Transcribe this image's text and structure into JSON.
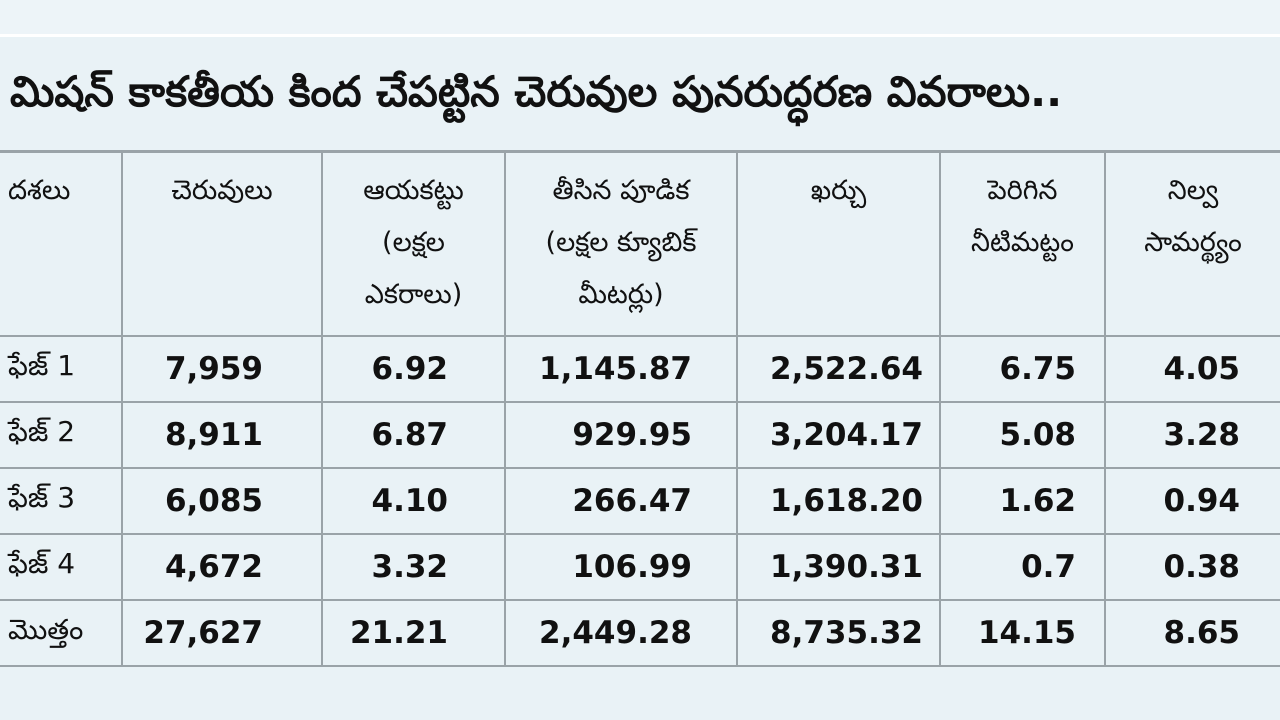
{
  "title": "మిషన్ కాకతీయ కింద చేపట్టిన చెరువుల పునరుద్ధరణ వివరాలు..",
  "table": {
    "headers": [
      "దశలు",
      "చెరువులు",
      "ఆయకట్టు\n(లక్షల\nఎకరాలు)",
      "తీసిన పూడిక\n(లక్షల క్యూబిక్\nమీటర్లు)",
      "ఖర్చు",
      "పెరిగిన\nనీటిమట్టం",
      "నిల్వ\nసామర్థ్యం"
    ],
    "rows": [
      [
        "ఫేజ్ 1",
        "7,959",
        "6.92",
        "1,145.87",
        "2,522.64",
        "6.75",
        "4.05"
      ],
      [
        "ఫేజ్ 2",
        "8,911",
        "6.87",
        "929.95",
        "3,204.17",
        "5.08",
        "3.28"
      ],
      [
        "ఫేజ్ 3",
        "6,085",
        "4.10",
        "266.47",
        "1,618.20",
        "1.62",
        "0.94"
      ],
      [
        "ఫేజ్ 4",
        "4,672",
        "3.32",
        "106.99",
        "1,390.31",
        "0.7",
        "0.38"
      ],
      [
        "మొత్తం",
        "27,627",
        "21.21",
        "2,449.28",
        "8,735.32",
        "14.15",
        "8.65"
      ]
    ]
  }
}
